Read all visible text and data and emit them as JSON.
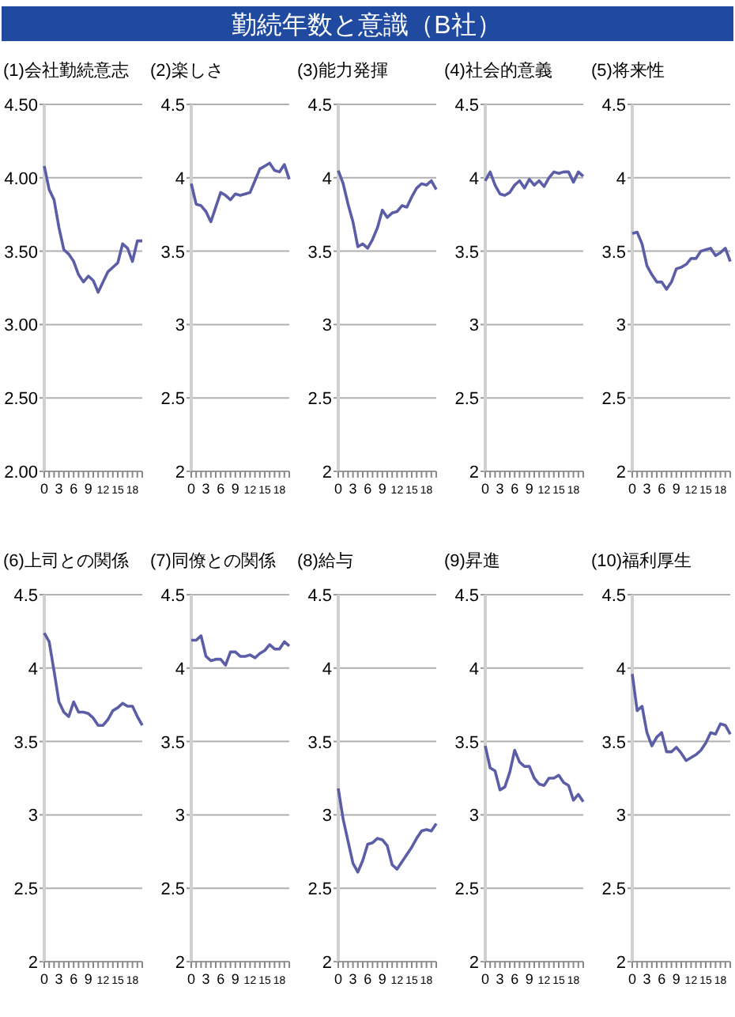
{
  "chart_data": [
    {
      "type": "other",
      "title": "勤続年数と意識（B社）"
    },
    {
      "type": "line",
      "title": "(1)会社勤続意志",
      "x": [
        0,
        1,
        2,
        3,
        4,
        5,
        6,
        7,
        8,
        9,
        10,
        11,
        12,
        13,
        14,
        15,
        16,
        17,
        18,
        19,
        20
      ],
      "xlim": [
        0,
        20
      ],
      "xticks": [
        0,
        {
          "value": 1,
          "label": null
        },
        {
          "value": 2,
          "label": null
        },
        3,
        {
          "value": 4,
          "label": null
        },
        {
          "value": 5,
          "label": null
        },
        6,
        {
          "value": 7,
          "label": null
        },
        {
          "value": 8,
          "label": null
        },
        9,
        {
          "value": 10,
          "label": null
        },
        {
          "value": 11,
          "label": null
        },
        12,
        {
          "value": 13,
          "label": null
        },
        {
          "value": 14,
          "label": null
        },
        15,
        {
          "value": 16,
          "label": null
        },
        {
          "value": 17,
          "label": null
        },
        18,
        {
          "value": 19,
          "label": null
        },
        {
          "value": 20,
          "label": null
        }
      ],
      "ylim": [
        2,
        4.5
      ],
      "yticks": [
        {
          "value": 2,
          "label": "2.00"
        },
        {
          "value": 2.5,
          "label": "2.50"
        },
        {
          "value": 3,
          "label": "3.00"
        },
        {
          "value": 3.5,
          "label": "3.50"
        },
        {
          "value": 4,
          "label": "4.00"
        },
        {
          "value": 4.5,
          "label": "4.50"
        }
      ],
      "grid": "y",
      "color": "#5b5ea6",
      "values": [
        4.08,
        3.92,
        3.85,
        3.66,
        3.51,
        3.48,
        3.43,
        3.34,
        3.29,
        3.33,
        3.3,
        3.22,
        3.29,
        3.36,
        3.39,
        3.42,
        3.55,
        3.52,
        3.43,
        3.57,
        3.57
      ]
    },
    {
      "type": "line",
      "title": "(2)楽しさ",
      "x": [
        0,
        1,
        2,
        3,
        4,
        5,
        6,
        7,
        8,
        9,
        10,
        11,
        12,
        13,
        14,
        15,
        16,
        17,
        18,
        19,
        20
      ],
      "xlim": [
        0,
        20
      ],
      "xticks": [
        0,
        {
          "value": 1,
          "label": null
        },
        {
          "value": 2,
          "label": null
        },
        3,
        {
          "value": 4,
          "label": null
        },
        {
          "value": 5,
          "label": null
        },
        6,
        {
          "value": 7,
          "label": null
        },
        {
          "value": 8,
          "label": null
        },
        9,
        {
          "value": 10,
          "label": null
        },
        {
          "value": 11,
          "label": null
        },
        12,
        {
          "value": 13,
          "label": null
        },
        {
          "value": 14,
          "label": null
        },
        15,
        {
          "value": 16,
          "label": null
        },
        {
          "value": 17,
          "label": null
        },
        18,
        {
          "value": 19,
          "label": null
        },
        {
          "value": 20,
          "label": null
        }
      ],
      "ylim": [
        2,
        4.5
      ],
      "yticks": [
        2,
        2.5,
        3,
        3.5,
        4,
        4.5
      ],
      "grid": "y",
      "color": "#5b5ea6",
      "values": [
        3.96,
        3.82,
        3.81,
        3.77,
        3.7,
        3.8,
        3.9,
        3.88,
        3.85,
        3.89,
        3.88,
        3.89,
        3.9,
        3.98,
        4.06,
        4.08,
        4.1,
        4.05,
        4.04,
        4.09,
        3.99
      ]
    },
    {
      "type": "line",
      "title": "(3)能力発揮",
      "x": [
        0,
        1,
        2,
        3,
        4,
        5,
        6,
        7,
        8,
        9,
        10,
        11,
        12,
        13,
        14,
        15,
        16,
        17,
        18,
        19,
        20
      ],
      "xlim": [
        0,
        20
      ],
      "xticks": [
        0,
        {
          "value": 1,
          "label": null
        },
        {
          "value": 2,
          "label": null
        },
        3,
        {
          "value": 4,
          "label": null
        },
        {
          "value": 5,
          "label": null
        },
        6,
        {
          "value": 7,
          "label": null
        },
        {
          "value": 8,
          "label": null
        },
        9,
        {
          "value": 10,
          "label": null
        },
        {
          "value": 11,
          "label": null
        },
        12,
        {
          "value": 13,
          "label": null
        },
        {
          "value": 14,
          "label": null
        },
        15,
        {
          "value": 16,
          "label": null
        },
        {
          "value": 17,
          "label": null
        },
        18,
        {
          "value": 19,
          "label": null
        },
        {
          "value": 20,
          "label": null
        }
      ],
      "ylim": [
        2,
        4.5
      ],
      "yticks": [
        2,
        2.5,
        3,
        3.5,
        4,
        4.5
      ],
      "grid": "y",
      "color": "#5b5ea6",
      "values": [
        4.05,
        3.96,
        3.82,
        3.7,
        3.53,
        3.55,
        3.52,
        3.58,
        3.66,
        3.78,
        3.73,
        3.76,
        3.77,
        3.81,
        3.8,
        3.87,
        3.93,
        3.96,
        3.95,
        3.98,
        3.92
      ]
    },
    {
      "type": "line",
      "title": "(4)社会的意義",
      "x": [
        0,
        1,
        2,
        3,
        4,
        5,
        6,
        7,
        8,
        9,
        10,
        11,
        12,
        13,
        14,
        15,
        16,
        17,
        18,
        19,
        20
      ],
      "xlim": [
        0,
        20
      ],
      "xticks": [
        0,
        {
          "value": 1,
          "label": null
        },
        {
          "value": 2,
          "label": null
        },
        3,
        {
          "value": 4,
          "label": null
        },
        {
          "value": 5,
          "label": null
        },
        6,
        {
          "value": 7,
          "label": null
        },
        {
          "value": 8,
          "label": null
        },
        9,
        {
          "value": 10,
          "label": null
        },
        {
          "value": 11,
          "label": null
        },
        12,
        {
          "value": 13,
          "label": null
        },
        {
          "value": 14,
          "label": null
        },
        15,
        {
          "value": 16,
          "label": null
        },
        {
          "value": 17,
          "label": null
        },
        18,
        {
          "value": 19,
          "label": null
        },
        {
          "value": 20,
          "label": null
        }
      ],
      "ylim": [
        2,
        4.5
      ],
      "yticks": [
        2,
        2.5,
        3,
        3.5,
        4,
        4.5
      ],
      "grid": "y",
      "color": "#5b5ea6",
      "values": [
        3.98,
        4.04,
        3.95,
        3.89,
        3.88,
        3.9,
        3.95,
        3.98,
        3.93,
        3.99,
        3.95,
        3.98,
        3.94,
        4.0,
        4.04,
        4.03,
        4.04,
        4.04,
        3.97,
        4.04,
        4.01
      ]
    },
    {
      "type": "line",
      "title": "(5)将来性",
      "x": [
        0,
        1,
        2,
        3,
        4,
        5,
        6,
        7,
        8,
        9,
        10,
        11,
        12,
        13,
        14,
        15,
        16,
        17,
        18,
        19,
        20
      ],
      "xlim": [
        0,
        20
      ],
      "xticks": [
        0,
        {
          "value": 1,
          "label": null
        },
        {
          "value": 2,
          "label": null
        },
        3,
        {
          "value": 4,
          "label": null
        },
        {
          "value": 5,
          "label": null
        },
        6,
        {
          "value": 7,
          "label": null
        },
        {
          "value": 8,
          "label": null
        },
        9,
        {
          "value": 10,
          "label": null
        },
        {
          "value": 11,
          "label": null
        },
        12,
        {
          "value": 13,
          "label": null
        },
        {
          "value": 14,
          "label": null
        },
        15,
        {
          "value": 16,
          "label": null
        },
        {
          "value": 17,
          "label": null
        },
        18,
        {
          "value": 19,
          "label": null
        },
        {
          "value": 20,
          "label": null
        }
      ],
      "ylim": [
        2,
        4.5
      ],
      "yticks": [
        2,
        2.5,
        3,
        3.5,
        4,
        4.5
      ],
      "grid": "y",
      "color": "#5b5ea6",
      "values": [
        3.62,
        3.63,
        3.55,
        3.4,
        3.34,
        3.29,
        3.29,
        3.24,
        3.29,
        3.38,
        3.39,
        3.41,
        3.45,
        3.45,
        3.5,
        3.51,
        3.52,
        3.47,
        3.49,
        3.52,
        3.43
      ]
    },
    {
      "type": "line",
      "title": "(6)上司との関係",
      "x": [
        0,
        1,
        2,
        3,
        4,
        5,
        6,
        7,
        8,
        9,
        10,
        11,
        12,
        13,
        14,
        15,
        16,
        17,
        18,
        19,
        20
      ],
      "xlim": [
        0,
        20
      ],
      "xticks": [
        0,
        {
          "value": 1,
          "label": null
        },
        {
          "value": 2,
          "label": null
        },
        3,
        {
          "value": 4,
          "label": null
        },
        {
          "value": 5,
          "label": null
        },
        6,
        {
          "value": 7,
          "label": null
        },
        {
          "value": 8,
          "label": null
        },
        9,
        {
          "value": 10,
          "label": null
        },
        {
          "value": 11,
          "label": null
        },
        12,
        {
          "value": 13,
          "label": null
        },
        {
          "value": 14,
          "label": null
        },
        15,
        {
          "value": 16,
          "label": null
        },
        {
          "value": 17,
          "label": null
        },
        18,
        {
          "value": 19,
          "label": null
        },
        {
          "value": 20,
          "label": null
        }
      ],
      "ylim": [
        2,
        4.5
      ],
      "yticks": [
        2,
        2.5,
        3,
        3.5,
        4,
        4.5
      ],
      "grid": "y",
      "color": "#5b5ea6",
      "values": [
        4.24,
        4.18,
        3.98,
        3.77,
        3.7,
        3.67,
        3.77,
        3.7,
        3.7,
        3.69,
        3.66,
        3.61,
        3.61,
        3.65,
        3.71,
        3.73,
        3.76,
        3.74,
        3.74,
        3.67,
        3.61
      ]
    },
    {
      "type": "line",
      "title": "(7)同僚との関係",
      "x": [
        0,
        1,
        2,
        3,
        4,
        5,
        6,
        7,
        8,
        9,
        10,
        11,
        12,
        13,
        14,
        15,
        16,
        17,
        18,
        19,
        20
      ],
      "xlim": [
        0,
        20
      ],
      "xticks": [
        0,
        {
          "value": 1,
          "label": null
        },
        {
          "value": 2,
          "label": null
        },
        3,
        {
          "value": 4,
          "label": null
        },
        {
          "value": 5,
          "label": null
        },
        6,
        {
          "value": 7,
          "label": null
        },
        {
          "value": 8,
          "label": null
        },
        9,
        {
          "value": 10,
          "label": null
        },
        {
          "value": 11,
          "label": null
        },
        12,
        {
          "value": 13,
          "label": null
        },
        {
          "value": 14,
          "label": null
        },
        15,
        {
          "value": 16,
          "label": null
        },
        {
          "value": 17,
          "label": null
        },
        18,
        {
          "value": 19,
          "label": null
        },
        {
          "value": 20,
          "label": null
        }
      ],
      "ylim": [
        2,
        4.5
      ],
      "yticks": [
        2,
        2.5,
        3,
        3.5,
        4,
        4.5
      ],
      "grid": "y",
      "color": "#5b5ea6",
      "values": [
        4.19,
        4.19,
        4.22,
        4.08,
        4.05,
        4.06,
        4.06,
        4.02,
        4.11,
        4.11,
        4.08,
        4.08,
        4.09,
        4.07,
        4.1,
        4.12,
        4.16,
        4.13,
        4.13,
        4.18,
        4.15
      ]
    },
    {
      "type": "line",
      "title": "(8)給与",
      "x": [
        0,
        1,
        2,
        3,
        4,
        5,
        6,
        7,
        8,
        9,
        10,
        11,
        12,
        13,
        14,
        15,
        16,
        17,
        18,
        19,
        20
      ],
      "xlim": [
        0,
        20
      ],
      "xticks": [
        0,
        {
          "value": 1,
          "label": null
        },
        {
          "value": 2,
          "label": null
        },
        3,
        {
          "value": 4,
          "label": null
        },
        {
          "value": 5,
          "label": null
        },
        6,
        {
          "value": 7,
          "label": null
        },
        {
          "value": 8,
          "label": null
        },
        9,
        {
          "value": 10,
          "label": null
        },
        {
          "value": 11,
          "label": null
        },
        12,
        {
          "value": 13,
          "label": null
        },
        {
          "value": 14,
          "label": null
        },
        15,
        {
          "value": 16,
          "label": null
        },
        {
          "value": 17,
          "label": null
        },
        18,
        {
          "value": 19,
          "label": null
        },
        {
          "value": 20,
          "label": null
        }
      ],
      "ylim": [
        2,
        4.5
      ],
      "yticks": [
        2,
        2.5,
        3,
        3.5,
        4,
        4.5
      ],
      "grid": "y",
      "color": "#5b5ea6",
      "values": [
        3.18,
        2.97,
        2.82,
        2.67,
        2.61,
        2.69,
        2.8,
        2.81,
        2.84,
        2.83,
        2.79,
        2.66,
        2.63,
        2.68,
        2.73,
        2.78,
        2.84,
        2.89,
        2.9,
        2.89,
        2.94
      ]
    },
    {
      "type": "line",
      "title": "(9)昇進",
      "x": [
        0,
        1,
        2,
        3,
        4,
        5,
        6,
        7,
        8,
        9,
        10,
        11,
        12,
        13,
        14,
        15,
        16,
        17,
        18,
        19,
        20
      ],
      "xlim": [
        0,
        20
      ],
      "xticks": [
        0,
        {
          "value": 1,
          "label": null
        },
        {
          "value": 2,
          "label": null
        },
        3,
        {
          "value": 4,
          "label": null
        },
        {
          "value": 5,
          "label": null
        },
        6,
        {
          "value": 7,
          "label": null
        },
        {
          "value": 8,
          "label": null
        },
        9,
        {
          "value": 10,
          "label": null
        },
        {
          "value": 11,
          "label": null
        },
        12,
        {
          "value": 13,
          "label": null
        },
        {
          "value": 14,
          "label": null
        },
        15,
        {
          "value": 16,
          "label": null
        },
        {
          "value": 17,
          "label": null
        },
        18,
        {
          "value": 19,
          "label": null
        },
        {
          "value": 20,
          "label": null
        }
      ],
      "ylim": [
        2,
        4.5
      ],
      "yticks": [
        2,
        2.5,
        3,
        3.5,
        4,
        4.5
      ],
      "grid": "y",
      "color": "#5b5ea6",
      "values": [
        3.47,
        3.32,
        3.3,
        3.17,
        3.19,
        3.29,
        3.44,
        3.36,
        3.33,
        3.33,
        3.25,
        3.21,
        3.2,
        3.25,
        3.25,
        3.27,
        3.22,
        3.2,
        3.1,
        3.14,
        3.09
      ]
    },
    {
      "type": "line",
      "title": "(10)福利厚生",
      "x": [
        0,
        1,
        2,
        3,
        4,
        5,
        6,
        7,
        8,
        9,
        10,
        11,
        12,
        13,
        14,
        15,
        16,
        17,
        18,
        19,
        20
      ],
      "xlim": [
        0,
        20
      ],
      "xticks": [
        0,
        {
          "value": 1,
          "label": null
        },
        {
          "value": 2,
          "label": null
        },
        3,
        {
          "value": 4,
          "label": null
        },
        {
          "value": 5,
          "label": null
        },
        6,
        {
          "value": 7,
          "label": null
        },
        {
          "value": 8,
          "label": null
        },
        9,
        {
          "value": 10,
          "label": null
        },
        {
          "value": 11,
          "label": null
        },
        12,
        {
          "value": 13,
          "label": null
        },
        {
          "value": 14,
          "label": null
        },
        15,
        {
          "value": 16,
          "label": null
        },
        {
          "value": 17,
          "label": null
        },
        18,
        {
          "value": 19,
          "label": null
        },
        {
          "value": 20,
          "label": null
        }
      ],
      "ylim": [
        2,
        4.5
      ],
      "yticks": [
        2,
        2.5,
        3,
        3.5,
        4,
        4.5
      ],
      "grid": "y",
      "color": "#5b5ea6",
      "values": [
        3.96,
        3.71,
        3.74,
        3.56,
        3.47,
        3.53,
        3.56,
        3.43,
        3.43,
        3.46,
        3.42,
        3.37,
        3.39,
        3.41,
        3.44,
        3.49,
        3.56,
        3.55,
        3.62,
        3.61,
        3.55
      ]
    }
  ]
}
